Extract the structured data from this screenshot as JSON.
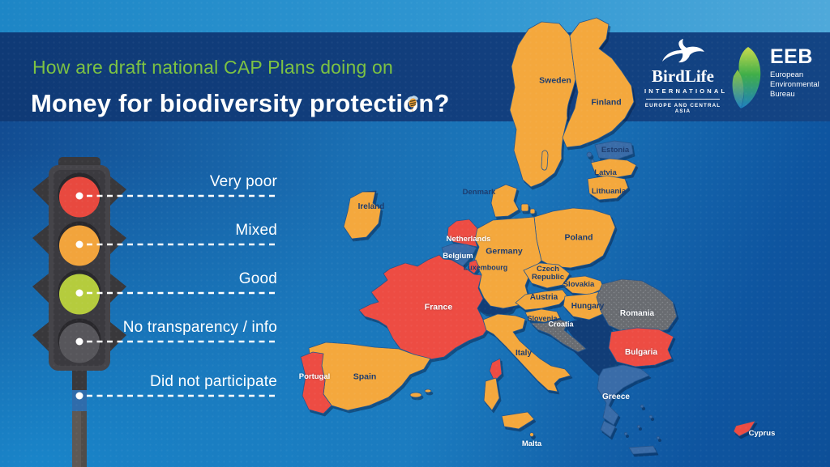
{
  "header": {
    "title_line1": "How are draft national CAP Plans doing on",
    "title_line2": "Money for biodiversity protection?"
  },
  "logos": {
    "birdlife": {
      "name": "BirdLife",
      "tier": "INTERNATIONAL",
      "region": "EUROPE AND CENTRAL ASIA"
    },
    "eeb": {
      "abbr": "EEB",
      "line1": "European",
      "line2": "Environmental",
      "line3": "Bureau"
    }
  },
  "legend": {
    "items": [
      {
        "label": "Very poor",
        "color": "#e8493f"
      },
      {
        "label": "Mixed",
        "color": "#f2a43c"
      },
      {
        "label": "Good",
        "color": "#b5cc3d"
      },
      {
        "label": "No transparency / info",
        "color": "#57565b"
      },
      {
        "label": "Did not participate",
        "color": "#2f6cab"
      }
    ]
  },
  "map": {
    "status_colors": {
      "very_poor": "#ed4c43",
      "mixed": "#f4a83d",
      "good": "#b5cc3d",
      "no_info": "#696c71",
      "did_not_participate": "#3a6ca8"
    },
    "countries": [
      {
        "name": "Sweden",
        "status": "mixed"
      },
      {
        "name": "Finland",
        "status": "mixed"
      },
      {
        "name": "Estonia",
        "status": "did_not_participate"
      },
      {
        "name": "Latvia",
        "status": "mixed"
      },
      {
        "name": "Lithuania",
        "status": "mixed"
      },
      {
        "name": "Denmark",
        "status": "mixed"
      },
      {
        "name": "Ireland",
        "status": "mixed"
      },
      {
        "name": "Netherlands",
        "status": "very_poor"
      },
      {
        "name": "Belgium",
        "status": "did_not_participate"
      },
      {
        "name": "Luxembourg",
        "status": "very_poor"
      },
      {
        "name": "Germany",
        "status": "mixed"
      },
      {
        "name": "Poland",
        "status": "mixed"
      },
      {
        "name": "Czech Republic",
        "status": "mixed"
      },
      {
        "name": "Slovakia",
        "status": "mixed"
      },
      {
        "name": "Austria",
        "status": "mixed"
      },
      {
        "name": "Hungary",
        "status": "mixed"
      },
      {
        "name": "Slovenia",
        "status": "mixed"
      },
      {
        "name": "Croatia",
        "status": "no_info"
      },
      {
        "name": "Romania",
        "status": "no_info"
      },
      {
        "name": "Bulgaria",
        "status": "very_poor"
      },
      {
        "name": "France",
        "status": "very_poor"
      },
      {
        "name": "Spain",
        "status": "mixed"
      },
      {
        "name": "Portugal",
        "status": "very_poor"
      },
      {
        "name": "Italy",
        "status": "mixed"
      },
      {
        "name": "Greece",
        "status": "did_not_participate"
      },
      {
        "name": "Malta",
        "status": "mixed"
      },
      {
        "name": "Cyprus",
        "status": "very_poor"
      }
    ]
  }
}
